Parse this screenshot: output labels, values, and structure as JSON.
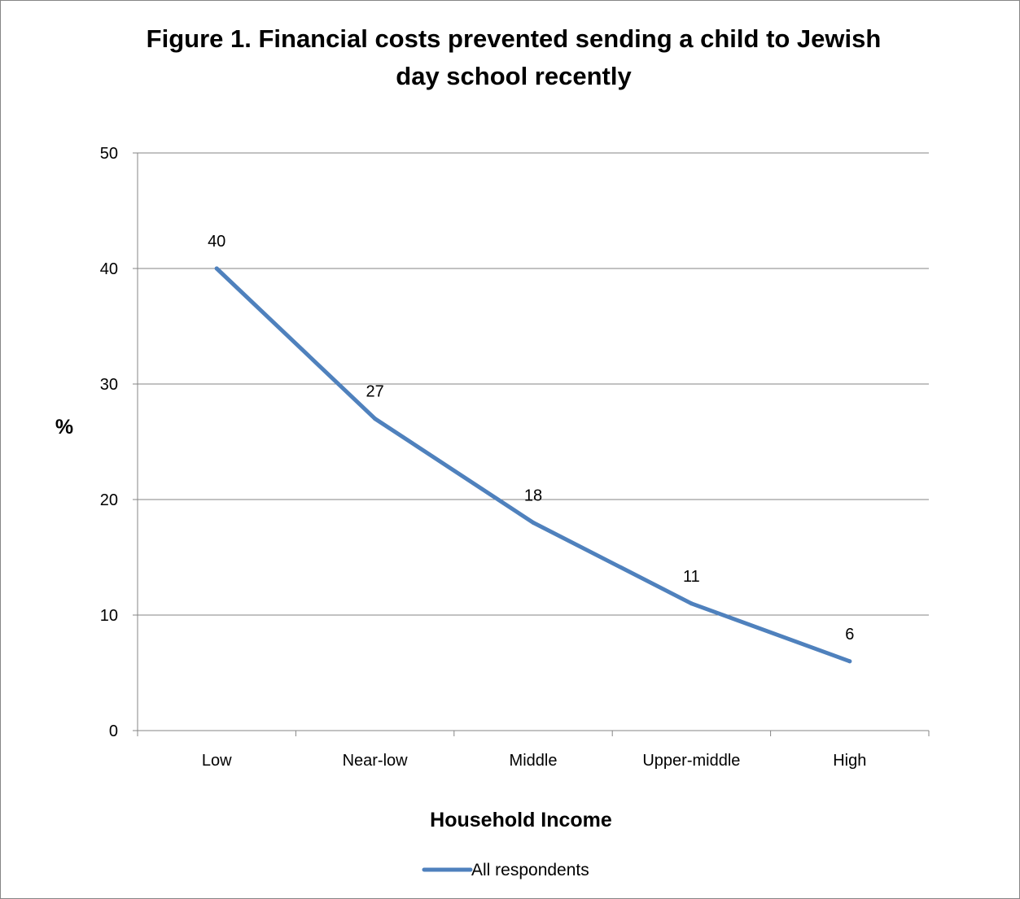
{
  "chart_data": {
    "type": "line",
    "title_lines": [
      "Figure 1. Financial costs prevented sending a child to Jewish",
      "day school recently"
    ],
    "xlabel": "Household Income",
    "ylabel": "%",
    "categories": [
      "Low",
      "Near-low",
      "Middle",
      "Upper-middle",
      "High"
    ],
    "series": [
      {
        "name": "All respondents",
        "values": [
          40,
          27,
          18,
          11,
          6
        ],
        "color": "#4f81bd"
      }
    ],
    "ylim": [
      0,
      50
    ],
    "yticks": [
      0,
      10,
      20,
      30,
      40,
      50
    ],
    "grid": true,
    "data_labels": true,
    "legend_position": "bottom"
  }
}
